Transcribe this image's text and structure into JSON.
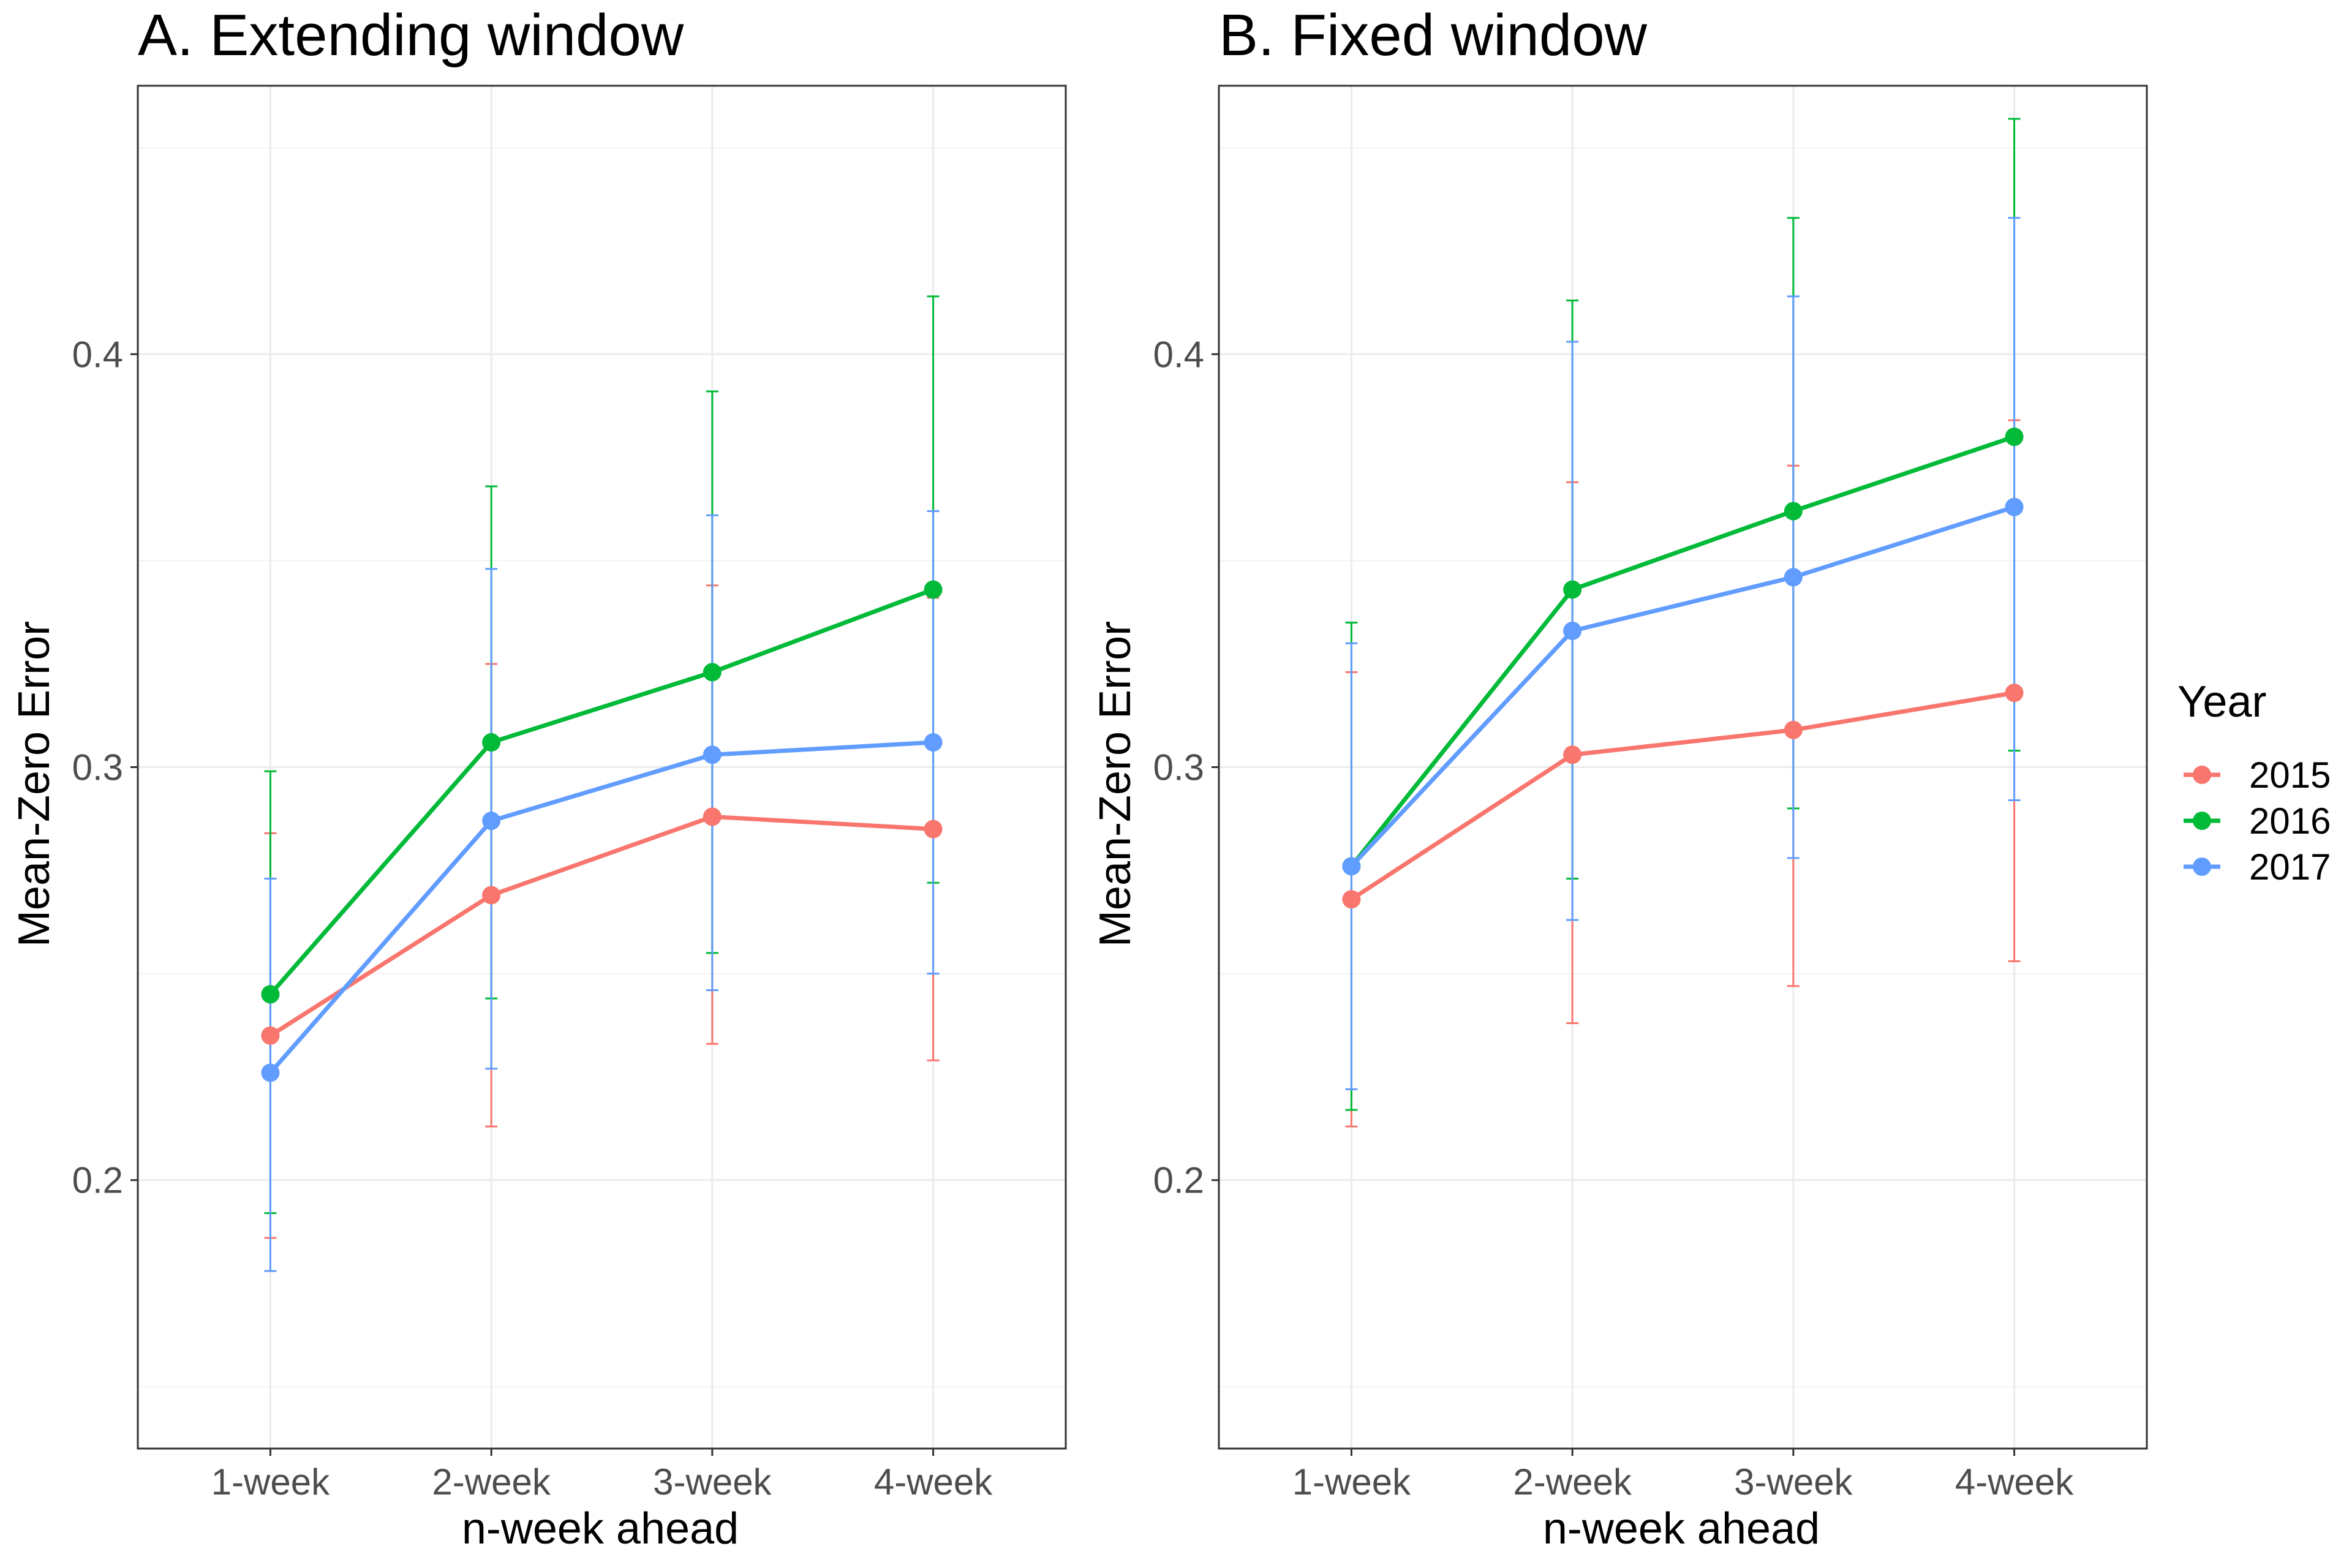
{
  "chart_data": [
    {
      "type": "line",
      "title": "A. Extending window",
      "xlabel": "n-week ahead",
      "ylabel": "Mean-Zero Error",
      "categories": [
        "1-week",
        "2-week",
        "3-week",
        "4-week"
      ],
      "yticks": [
        "0.2",
        "0.3",
        "0.4"
      ],
      "ylim": [
        0.135,
        0.465
      ],
      "grid": true,
      "error_bars": true,
      "series": [
        {
          "name": "2015",
          "color": "#F8766D",
          "values": [
            0.235,
            0.269,
            0.288,
            0.285
          ],
          "lower": [
            0.186,
            0.213,
            0.233,
            0.229
          ],
          "upper": [
            0.284,
            0.325,
            0.344,
            0.341
          ]
        },
        {
          "name": "2016",
          "color": "#00BA38",
          "values": [
            0.245,
            0.306,
            0.323,
            0.343
          ],
          "lower": [
            0.192,
            0.244,
            0.255,
            0.272
          ],
          "upper": [
            0.299,
            0.368,
            0.391,
            0.414
          ]
        },
        {
          "name": "2017",
          "color": "#619CFF",
          "values": [
            0.226,
            0.287,
            0.303,
            0.306
          ],
          "lower": [
            0.178,
            0.227,
            0.246,
            0.25
          ],
          "upper": [
            0.273,
            0.348,
            0.361,
            0.362
          ]
        }
      ]
    },
    {
      "type": "line",
      "title": "B. Fixed window",
      "xlabel": "n-week ahead",
      "ylabel": "Mean-Zero Error",
      "categories": [
        "1-week",
        "2-week",
        "3-week",
        "4-week"
      ],
      "yticks": [
        "0.2",
        "0.3",
        "0.4"
      ],
      "ylim": [
        0.135,
        0.465
      ],
      "grid": true,
      "error_bars": true,
      "series": [
        {
          "name": "2015",
          "color": "#F8766D",
          "values": [
            0.268,
            0.303,
            0.309,
            0.318
          ],
          "lower": [
            0.213,
            0.238,
            0.247,
            0.253
          ],
          "upper": [
            0.323,
            0.369,
            0.373,
            0.384
          ]
        },
        {
          "name": "2016",
          "color": "#00BA38",
          "values": [
            0.276,
            0.343,
            0.362,
            0.38
          ],
          "lower": [
            0.217,
            0.273,
            0.29,
            0.304
          ],
          "upper": [
            0.335,
            0.413,
            0.433,
            0.457
          ]
        },
        {
          "name": "2017",
          "color": "#619CFF",
          "values": [
            0.276,
            0.333,
            0.346,
            0.363
          ],
          "lower": [
            0.222,
            0.263,
            0.278,
            0.292
          ],
          "upper": [
            0.33,
            0.403,
            0.414,
            0.433
          ]
        }
      ]
    }
  ],
  "legend": {
    "title": "Year",
    "placement": "right",
    "items": [
      {
        "label": "2015",
        "color": "#F8766D"
      },
      {
        "label": "2016",
        "color": "#00BA38"
      },
      {
        "label": "2017",
        "color": "#619CFF"
      }
    ]
  }
}
